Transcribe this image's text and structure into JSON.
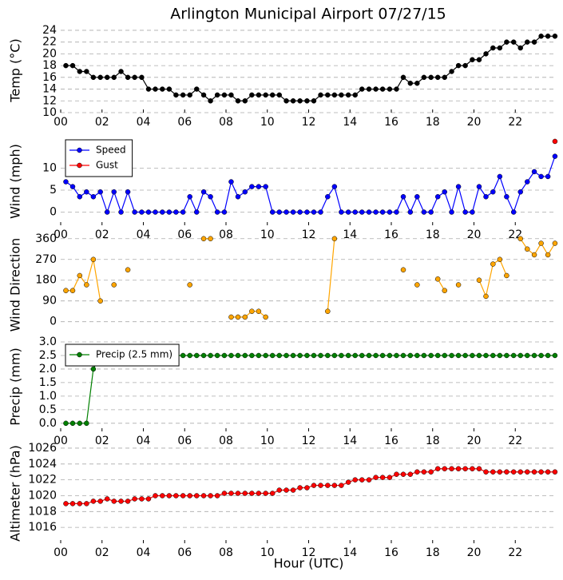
{
  "chart_data": [
    {
      "type": "line",
      "title": "Arlington Municipal Airport 07/27/15",
      "ylabel": "Temp (°C)",
      "x": [
        0.25,
        0.58,
        0.92,
        1.25,
        1.58,
        1.92,
        2.25,
        2.58,
        2.92,
        3.25,
        3.58,
        3.92,
        4.25,
        4.58,
        4.92,
        5.25,
        5.58,
        5.92,
        6.25,
        6.58,
        6.92,
        7.25,
        7.58,
        7.92,
        8.25,
        8.58,
        8.92,
        9.25,
        9.58,
        9.92,
        10.25,
        10.58,
        10.92,
        11.25,
        11.58,
        11.92,
        12.25,
        12.58,
        12.92,
        13.25,
        13.58,
        13.92,
        14.25,
        14.58,
        14.92,
        15.25,
        15.58,
        15.92,
        16.25,
        16.58,
        16.92,
        17.25,
        17.58,
        17.92,
        18.25,
        18.58,
        18.92,
        19.25,
        19.58,
        19.92,
        20.25,
        20.58,
        20.92,
        21.25,
        21.58,
        21.92,
        22.25,
        22.58,
        22.92,
        23.25,
        23.58,
        23.92
      ],
      "series": [
        {
          "color": "#000000",
          "values": [
            18,
            18,
            17,
            17,
            16,
            16,
            16,
            16,
            17,
            16,
            16,
            16,
            14,
            14,
            14,
            14,
            13,
            13,
            13,
            14,
            13,
            12,
            13,
            13,
            13,
            12,
            12,
            13,
            13,
            13,
            13,
            13,
            12,
            12,
            12,
            12,
            12,
            13,
            13,
            13,
            13,
            13,
            13,
            14,
            14,
            14,
            14,
            14,
            14,
            16,
            15,
            15,
            16,
            16,
            16,
            16,
            17,
            18,
            18,
            19,
            19,
            20,
            21,
            21,
            22,
            22,
            21,
            22,
            22,
            23,
            23,
            23
          ]
        }
      ],
      "xlim": [
        0,
        24
      ],
      "xticks": [
        {
          "value": 0,
          "label": "00"
        },
        {
          "value": 2,
          "label": "02"
        },
        {
          "value": 4,
          "label": "04"
        },
        {
          "value": 6,
          "label": "06"
        },
        {
          "value": 8,
          "label": "08"
        },
        {
          "value": 10,
          "label": "10"
        },
        {
          "value": 12,
          "label": "12"
        },
        {
          "value": 14,
          "label": "14"
        },
        {
          "value": 16,
          "label": "16"
        },
        {
          "value": 18,
          "label": "18"
        },
        {
          "value": 20,
          "label": "20"
        },
        {
          "value": 22,
          "label": "22"
        }
      ],
      "ylim": [
        10,
        24.4
      ],
      "yticks": [
        10,
        12,
        14,
        16,
        18,
        20,
        22,
        24
      ],
      "grid": true
    },
    {
      "type": "line",
      "ylabel": "Wind (mph)",
      "x": [
        0.25,
        0.58,
        0.92,
        1.25,
        1.58,
        1.92,
        2.25,
        2.58,
        2.92,
        3.25,
        3.58,
        3.92,
        4.25,
        4.58,
        4.92,
        5.25,
        5.58,
        5.92,
        6.25,
        6.58,
        6.92,
        7.25,
        7.58,
        7.92,
        8.25,
        8.58,
        8.92,
        9.25,
        9.58,
        9.92,
        10.25,
        10.58,
        10.92,
        11.25,
        11.58,
        11.92,
        12.25,
        12.58,
        12.92,
        13.25,
        13.58,
        13.92,
        14.25,
        14.58,
        14.92,
        15.25,
        15.58,
        15.92,
        16.25,
        16.58,
        16.92,
        17.25,
        17.58,
        17.92,
        18.25,
        18.58,
        18.92,
        19.25,
        19.58,
        19.92,
        20.25,
        20.58,
        20.92,
        21.25,
        21.58,
        21.92,
        22.25,
        22.58,
        22.92,
        23.25,
        23.58,
        23.92
      ],
      "series": [
        {
          "name": "Speed",
          "color": "#0000ff",
          "values": [
            6.9,
            5.8,
            3.5,
            4.6,
            3.5,
            4.6,
            0,
            4.6,
            0,
            4.6,
            0,
            0,
            0,
            0,
            0,
            0,
            0,
            0,
            3.5,
            0,
            4.6,
            3.5,
            0,
            0,
            6.9,
            3.5,
            4.6,
            5.8,
            5.8,
            5.8,
            0,
            0,
            0,
            0,
            0,
            0,
            0,
            0,
            3.5,
            5.8,
            0,
            0,
            0,
            0,
            0,
            0,
            0,
            0,
            0,
            3.5,
            0,
            3.5,
            0,
            0,
            3.5,
            4.6,
            0,
            5.8,
            0,
            0,
            5.8,
            3.5,
            4.6,
            8.1,
            3.5,
            0,
            4.6,
            6.9,
            9.2,
            8.1,
            8.1,
            12.7
          ]
        },
        {
          "name": "Gust",
          "color": "#ff0000",
          "values": [
            null,
            null,
            null,
            null,
            null,
            null,
            null,
            null,
            null,
            null,
            null,
            null,
            null,
            null,
            null,
            null,
            null,
            null,
            null,
            null,
            null,
            null,
            null,
            null,
            null,
            null,
            null,
            null,
            null,
            null,
            null,
            null,
            null,
            null,
            null,
            null,
            null,
            null,
            null,
            null,
            null,
            null,
            null,
            null,
            null,
            null,
            null,
            null,
            null,
            null,
            null,
            null,
            null,
            null,
            null,
            null,
            null,
            null,
            null,
            null,
            null,
            null,
            null,
            null,
            null,
            null,
            null,
            null,
            null,
            null,
            null,
            16.1
          ]
        }
      ],
      "xlim": [
        0,
        24
      ],
      "xticks": [
        {
          "value": 0,
          "label": "00"
        },
        {
          "value": 2,
          "label": "02"
        },
        {
          "value": 4,
          "label": "04"
        },
        {
          "value": 6,
          "label": "06"
        },
        {
          "value": 8,
          "label": "08"
        },
        {
          "value": 10,
          "label": "10"
        },
        {
          "value": 12,
          "label": "12"
        },
        {
          "value": 14,
          "label": "14"
        },
        {
          "value": 16,
          "label": "16"
        },
        {
          "value": 18,
          "label": "18"
        },
        {
          "value": 20,
          "label": "20"
        },
        {
          "value": 22,
          "label": "22"
        }
      ],
      "ylim": [
        -3,
        17
      ],
      "yticks": [
        0,
        5,
        10
      ],
      "grid": true,
      "legend": "upper left"
    },
    {
      "type": "line",
      "ylabel": "Wind Direction",
      "x": [
        0.25,
        0.58,
        0.92,
        1.25,
        1.58,
        1.92,
        2.25,
        2.58,
        2.92,
        3.25,
        3.58,
        3.92,
        4.25,
        4.58,
        4.92,
        5.25,
        5.58,
        5.92,
        6.25,
        6.58,
        6.92,
        7.25,
        7.58,
        7.92,
        8.25,
        8.58,
        8.92,
        9.25,
        9.58,
        9.92,
        10.25,
        10.58,
        10.92,
        11.25,
        11.58,
        11.92,
        12.25,
        12.58,
        12.92,
        13.25,
        13.58,
        13.92,
        14.25,
        14.58,
        14.92,
        15.25,
        15.58,
        15.92,
        16.25,
        16.58,
        16.92,
        17.25,
        17.58,
        17.92,
        18.25,
        18.58,
        18.92,
        19.25,
        19.58,
        19.92,
        20.25,
        20.58,
        20.92,
        21.25,
        21.58,
        21.92,
        22.25,
        22.58,
        22.92,
        23.25,
        23.58,
        23.92
      ],
      "series": [
        {
          "color": "#ffa500",
          "values": [
            135,
            135,
            200,
            160,
            270,
            90,
            null,
            160,
            null,
            225,
            null,
            null,
            null,
            null,
            null,
            null,
            null,
            null,
            160,
            null,
            360,
            360,
            null,
            null,
            20,
            20,
            20,
            45,
            45,
            20,
            null,
            null,
            null,
            null,
            null,
            null,
            null,
            null,
            45,
            360,
            null,
            null,
            null,
            null,
            null,
            null,
            null,
            null,
            null,
            225,
            null,
            160,
            null,
            null,
            185,
            135,
            null,
            160,
            null,
            null,
            180,
            110,
            250,
            270,
            200,
            null,
            360,
            315,
            290,
            340,
            290,
            340
          ]
        }
      ],
      "xlim": [
        0,
        24
      ],
      "ylim": [
        -60,
        380
      ],
      "yticks": [
        0,
        90,
        180,
        270,
        360
      ],
      "grid": true
    },
    {
      "type": "line",
      "ylabel": "Precip (mm)",
      "x": [
        0.25,
        0.58,
        0.92,
        1.25,
        1.58,
        1.92,
        2.25,
        2.58,
        2.92,
        3.25,
        3.58,
        3.92,
        4.25,
        4.58,
        4.92,
        5.25,
        5.58,
        5.92,
        6.25,
        6.58,
        6.92,
        7.25,
        7.58,
        7.92,
        8.25,
        8.58,
        8.92,
        9.25,
        9.58,
        9.92,
        10.25,
        10.58,
        10.92,
        11.25,
        11.58,
        11.92,
        12.25,
        12.58,
        12.92,
        13.25,
        13.58,
        13.92,
        14.25,
        14.58,
        14.92,
        15.25,
        15.58,
        15.92,
        16.25,
        16.58,
        16.92,
        17.25,
        17.58,
        17.92,
        18.25,
        18.58,
        18.92,
        19.25,
        19.58,
        19.92,
        20.25,
        20.58,
        20.92,
        21.25,
        21.58,
        21.92,
        22.25,
        22.58,
        22.92,
        23.25,
        23.58,
        23.92
      ],
      "series": [
        {
          "name": "Precip (2.5 mm)",
          "color": "#008000",
          "values": [
            0,
            0,
            0,
            0,
            2.0,
            2.5,
            2.5,
            2.5,
            2.5,
            2.5,
            2.5,
            2.5,
            2.5,
            2.5,
            2.5,
            2.5,
            2.5,
            2.5,
            2.5,
            2.5,
            2.5,
            2.5,
            2.5,
            2.5,
            2.5,
            2.5,
            2.5,
            2.5,
            2.5,
            2.5,
            2.5,
            2.5,
            2.5,
            2.5,
            2.5,
            2.5,
            2.5,
            2.5,
            2.5,
            2.5,
            2.5,
            2.5,
            2.5,
            2.5,
            2.5,
            2.5,
            2.5,
            2.5,
            2.5,
            2.5,
            2.5,
            2.5,
            2.5,
            2.5,
            2.5,
            2.5,
            2.5,
            2.5,
            2.5,
            2.5,
            2.5,
            2.5,
            2.5,
            2.5,
            2.5,
            2.5,
            2.5,
            2.5,
            2.5,
            2.5,
            2.5,
            2.5
          ]
        }
      ],
      "xlim": [
        0,
        24
      ],
      "xticks": [
        {
          "value": 0,
          "label": "00"
        },
        {
          "value": 2,
          "label": "02"
        },
        {
          "value": 4,
          "label": "04"
        },
        {
          "value": 6,
          "label": "06"
        },
        {
          "value": 8,
          "label": "08"
        },
        {
          "value": 10,
          "label": "10"
        },
        {
          "value": 12,
          "label": "12"
        },
        {
          "value": 14,
          "label": "14"
        },
        {
          "value": 16,
          "label": "16"
        },
        {
          "value": 18,
          "label": "18"
        },
        {
          "value": 20,
          "label": "20"
        },
        {
          "value": 22,
          "label": "22"
        }
      ],
      "ylim": [
        -0.3,
        3.0
      ],
      "yticks": [
        {
          "value": 0,
          "label": "0.0"
        },
        {
          "value": 0.5,
          "label": "0.5"
        },
        {
          "value": 1,
          "label": "1.0"
        },
        {
          "value": 1.5,
          "label": "1.5"
        },
        {
          "value": 2,
          "label": "2.0"
        },
        {
          "value": 2.5,
          "label": "2.5"
        },
        {
          "value": 3,
          "label": "3.0"
        }
      ],
      "grid": true,
      "legend": "upper left"
    },
    {
      "type": "line",
      "ylabel": "Altimeter (hPa)",
      "xlabel": "Hour (UTC)",
      "x": [
        0.25,
        0.58,
        0.92,
        1.25,
        1.58,
        1.92,
        2.25,
        2.58,
        2.92,
        3.25,
        3.58,
        3.92,
        4.25,
        4.58,
        4.92,
        5.25,
        5.58,
        5.92,
        6.25,
        6.58,
        6.92,
        7.25,
        7.58,
        7.92,
        8.25,
        8.58,
        8.92,
        9.25,
        9.58,
        9.92,
        10.25,
        10.58,
        10.92,
        11.25,
        11.58,
        11.92,
        12.25,
        12.58,
        12.92,
        13.25,
        13.58,
        13.92,
        14.25,
        14.58,
        14.92,
        15.25,
        15.58,
        15.92,
        16.25,
        16.58,
        16.92,
        17.25,
        17.58,
        17.92,
        18.25,
        18.58,
        18.92,
        19.25,
        19.58,
        19.92,
        20.25,
        20.58,
        20.92,
        21.25,
        21.58,
        21.92,
        22.25,
        22.58,
        22.92,
        23.25,
        23.58,
        23.92
      ],
      "series": [
        {
          "color": "#ff0000",
          "values": [
            1019.0,
            1019.0,
            1019.0,
            1019.0,
            1019.3,
            1019.3,
            1019.6,
            1019.3,
            1019.3,
            1019.3,
            1019.6,
            1019.6,
            1019.6,
            1020.0,
            1020.0,
            1020.0,
            1020.0,
            1020.0,
            1020.0,
            1020.0,
            1020.0,
            1020.0,
            1020.0,
            1020.3,
            1020.3,
            1020.3,
            1020.3,
            1020.3,
            1020.3,
            1020.3,
            1020.3,
            1020.7,
            1020.7,
            1020.7,
            1021.0,
            1021.0,
            1021.3,
            1021.3,
            1021.3,
            1021.3,
            1021.3,
            1021.7,
            1022.0,
            1022.0,
            1022.0,
            1022.3,
            1022.3,
            1022.3,
            1022.7,
            1022.7,
            1022.7,
            1023.0,
            1023.0,
            1023.0,
            1023.4,
            1023.4,
            1023.4,
            1023.4,
            1023.4,
            1023.4,
            1023.4,
            1023.0,
            1023.0,
            1023.0,
            1023.0,
            1023.0,
            1023.0,
            1023.0,
            1023.0,
            1023.0,
            1023.0,
            1023.0
          ]
        }
      ],
      "xlim": [
        0,
        24
      ],
      "xticks": [
        {
          "value": 0,
          "label": "00"
        },
        {
          "value": 2,
          "label": "02"
        },
        {
          "value": 4,
          "label": "04"
        },
        {
          "value": 6,
          "label": "06"
        },
        {
          "value": 8,
          "label": "08"
        },
        {
          "value": 10,
          "label": "10"
        },
        {
          "value": 12,
          "label": "12"
        },
        {
          "value": 14,
          "label": "14"
        },
        {
          "value": 16,
          "label": "16"
        },
        {
          "value": 18,
          "label": "18"
        },
        {
          "value": 20,
          "label": "20"
        },
        {
          "value": 22,
          "label": "22"
        }
      ],
      "ylim": [
        1014,
        1026.6
      ],
      "yticks": [
        1016,
        1018,
        1020,
        1022,
        1024,
        1026
      ],
      "grid": true
    }
  ]
}
